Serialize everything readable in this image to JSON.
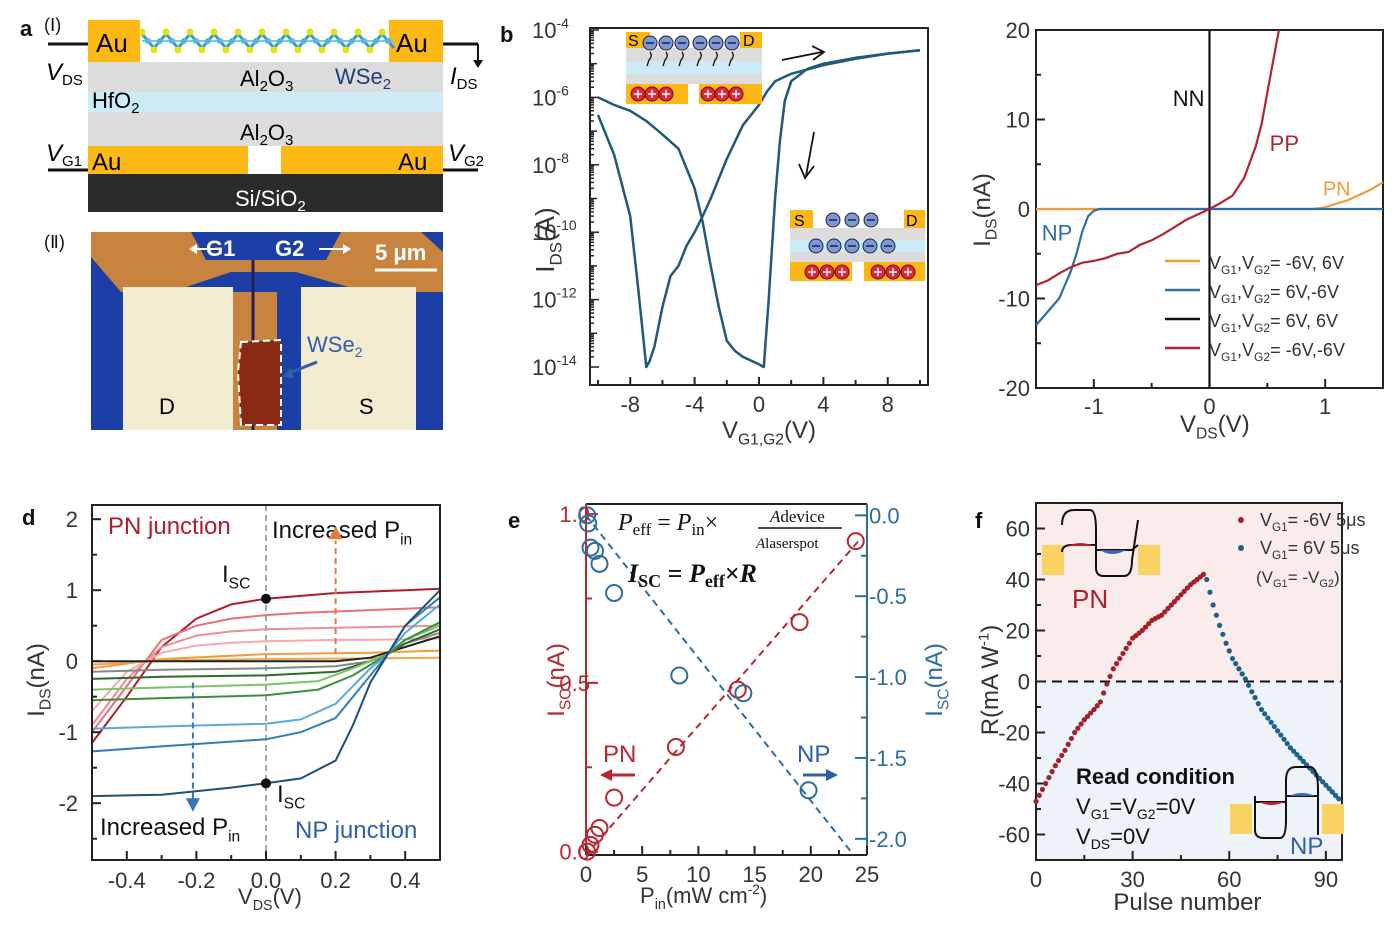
{
  "panels": {
    "a": {
      "label": "a",
      "sub1": "(Ⅰ)",
      "sub2": "(Ⅱ)",
      "layers": {
        "au_tl": "Au",
        "au_tr": "Au",
        "al2o3_top": "Al2O3",
        "wse2": "WSe2",
        "hfo2": "HfO2",
        "al2o3_bottom": "Al2O3",
        "au_bl": "Au",
        "au_br": "Au",
        "substrate": "Si/SiO2"
      },
      "terminals": {
        "vds": "VDS",
        "ids": "IDS",
        "vg1": "VG1",
        "vg2": "VG2"
      },
      "micrograph": {
        "g1": "G1",
        "g2": "G2",
        "scale": "5 μm",
        "wse2": "WSe2",
        "d": "D",
        "s": "S"
      },
      "colors": {
        "gold": "#FDB813",
        "al2o3": "#DCDCDC",
        "hfo2": "#CDEBF7",
        "substrate": "#2B2B2B",
        "wse2_text": "#1F3C78"
      }
    }
  },
  "chart_data": [
    {
      "id": "b",
      "type": "line",
      "panel_label": "b",
      "title": "",
      "xlabel": "VG1,G2(V)",
      "ylabel": "IDS(A)",
      "yscale": "log",
      "xlim": [
        -10.5,
        10.5
      ],
      "ylim": [
        1e-15,
        0.0001
      ],
      "xticks": [
        -8,
        -4,
        0,
        4,
        8
      ],
      "yticks": [
        "10^-4",
        "10^-6",
        "10^-8",
        "10^-10",
        "10^-12",
        "10^-14"
      ],
      "color": "#1F5A7A",
      "series": [
        {
          "name": "forward sweep",
          "x": [
            -10,
            -9,
            -8,
            -7.5,
            -7,
            -6.8,
            -6.5,
            -6,
            -5.5,
            -5,
            -4.5,
            -4,
            -3.5,
            -3,
            -2,
            -1,
            0,
            0.5,
            1,
            2,
            4,
            6,
            8,
            10
          ],
          "y": [
            3e-07,
            2e-08,
            3e-10,
            2e-12,
            1e-14,
            1.5e-14,
            4e-14,
            6e-13,
            5e-12,
            1e-11,
            4e-11,
            1e-10,
            3e-10,
            1e-09,
            1.5e-08,
            1.5e-07,
            6e-07,
            1.5e-06,
            3e-06,
            5e-06,
            9e-06,
            1.4e-05,
            2e-05,
            2.5e-05
          ]
        },
        {
          "name": "backward sweep",
          "x": [
            -10,
            -9,
            -8,
            -7,
            -6,
            -5,
            -4,
            -3.5,
            -3,
            -2.5,
            -2,
            -1.5,
            -1,
            0,
            0.3,
            0.6,
            1,
            1.3,
            1.6,
            2,
            3,
            4,
            6,
            8,
            10
          ],
          "y": [
            1e-06,
            6e-07,
            4e-07,
            2e-07,
            8e-08,
            3e-08,
            2e-09,
            2e-10,
            1e-11,
            6e-13,
            6e-14,
            3e-14,
            2e-14,
            1.2e-14,
            1e-14,
            1e-12,
            1e-09,
            5e-08,
            8e-07,
            3e-06,
            7e-06,
            1e-05,
            1.5e-05,
            2e-05,
            2.5e-05
          ]
        }
      ],
      "insets": {
        "top": {
          "s": "S",
          "d": "D"
        },
        "bottom": {
          "s": "S",
          "d": "D"
        }
      }
    },
    {
      "id": "c",
      "type": "line",
      "panel_label": "",
      "xlabel": "VDS(V)",
      "ylabel": "IDS(nA)",
      "xlim": [
        -1.5,
        1.5
      ],
      "ylim": [
        -20,
        20
      ],
      "xticks": [
        -1,
        0,
        1
      ],
      "yticks": [
        20,
        10,
        0,
        -10,
        -20
      ],
      "annotations": {
        "nn": "NN",
        "pp": "PP",
        "pn": "PN",
        "np": "NP"
      },
      "legend_position": "bottom-right",
      "series": [
        {
          "name": "VG1,VG2= -6V, 6V",
          "label": "PN",
          "color": "#F39A3C",
          "x": [
            -1.5,
            -1,
            0,
            0.5,
            0.9,
            1.0,
            1.2,
            1.4,
            1.5
          ],
          "y": [
            0,
            0,
            0,
            0,
            0,
            0.2,
            1,
            2.2,
            3
          ]
        },
        {
          "name": "VG1,VG2=  6V,-6V",
          "label": "NP",
          "color": "#2F6E9E",
          "x": [
            -1.5,
            -1.4,
            -1.3,
            -1.2,
            -1.15,
            -1.1,
            -1.05,
            -1.0,
            -0.95,
            -0.9,
            0,
            1.5
          ],
          "y": [
            -13,
            -11.5,
            -10,
            -7,
            -5,
            -2.5,
            -0.8,
            -0.2,
            0,
            0,
            0,
            0
          ]
        },
        {
          "name": "VG1,VG2=  6V, 6V",
          "label": "NN",
          "color": "#111111",
          "x": [
            0,
            0,
            0
          ],
          "y": [
            -20,
            0,
            20
          ]
        },
        {
          "name": "VG1,VG2= -6V,-6V",
          "label": "PP",
          "color": "#B22230",
          "x": [
            -1.5,
            -1.4,
            -1.3,
            -1.2,
            -1.1,
            -1.0,
            -0.9,
            -0.8,
            -0.7,
            -0.6,
            -0.5,
            -0.4,
            -0.3,
            -0.2,
            -0.1,
            0,
            0.1,
            0.2,
            0.3,
            0.4,
            0.45,
            0.5,
            0.55,
            0.6
          ],
          "y": [
            -8.5,
            -8,
            -7.2,
            -6.5,
            -6,
            -5.8,
            -5.5,
            -5,
            -4.8,
            -4,
            -3.5,
            -2.8,
            -2,
            -1.2,
            -0.6,
            0,
            0.7,
            1.5,
            3.5,
            7,
            9.5,
            13,
            16.5,
            20
          ]
        }
      ]
    },
    {
      "id": "d",
      "type": "line",
      "panel_label": "d",
      "xlabel": "VDS(V)",
      "ylabel": "IDS(nA)",
      "xlim": [
        -0.5,
        0.5
      ],
      "ylim": [
        -2.8,
        2.2
      ],
      "xticks": [
        -0.4,
        -0.2,
        0.0,
        0.2,
        0.4
      ],
      "yticks": [
        2,
        1,
        0,
        -1,
        -2
      ],
      "annotations": {
        "pn_junction": "PN junction",
        "np_junction": "NP junction",
        "increased_pin_top": "Increased Pin",
        "increased_pin_bottom": "Increased Pin",
        "isc_top": "ISC",
        "isc_bottom": "ISC"
      },
      "isc_points": [
        {
          "x": 0,
          "y": 0.88
        },
        {
          "x": 0,
          "y": -1.72
        }
      ],
      "series": [
        {
          "group": "PN",
          "color": "#B01C2E",
          "isc": 0.88,
          "x": [
            -0.5,
            -0.4,
            -0.3,
            -0.2,
            -0.1,
            0,
            0.1,
            0.2,
            0.3,
            0.4,
            0.5
          ],
          "y": [
            -1.15,
            -0.5,
            0.2,
            0.6,
            0.8,
            0.88,
            0.92,
            0.96,
            0.98,
            1.0,
            1.02
          ]
        },
        {
          "group": "PN",
          "color": "#E8707A",
          "isc": 0.65,
          "x": [
            -0.5,
            -0.4,
            -0.3,
            -0.2,
            -0.1,
            0,
            0.1,
            0.2,
            0.3,
            0.4,
            0.5
          ],
          "y": [
            -1.0,
            -0.35,
            0.3,
            0.5,
            0.6,
            0.65,
            0.68,
            0.7,
            0.72,
            0.74,
            0.76
          ]
        },
        {
          "group": "PN",
          "color": "#F08C95",
          "isc": 0.45,
          "x": [
            -0.5,
            -0.4,
            -0.3,
            -0.2,
            -0.1,
            0,
            0.1,
            0.2,
            0.3,
            0.4,
            0.5
          ],
          "y": [
            -0.9,
            -0.25,
            0.2,
            0.36,
            0.42,
            0.45,
            0.46,
            0.47,
            0.48,
            0.49,
            0.5
          ]
        },
        {
          "group": "PN",
          "color": "#F6A9B0",
          "isc": 0.28,
          "x": [
            -0.5,
            -0.4,
            -0.3,
            -0.2,
            -0.1,
            0,
            0.1,
            0.2,
            0.3,
            0.4,
            0.5
          ],
          "y": [
            -0.7,
            -0.15,
            0.12,
            0.22,
            0.26,
            0.28,
            0.29,
            0.3,
            0.3,
            0.31,
            0.32
          ]
        },
        {
          "group": "zero",
          "color": "#F39A3C",
          "isc": 0.1,
          "x": [
            -0.5,
            -0.3,
            0,
            0.3,
            0.5
          ],
          "y": [
            -0.1,
            0.03,
            0.1,
            0.12,
            0.15
          ]
        },
        {
          "group": "zero",
          "color": "#F5A54A",
          "isc": 0.03,
          "x": [
            -0.5,
            -0.3,
            0,
            0.3,
            0.5
          ],
          "y": [
            -0.05,
            0.01,
            0.03,
            0.04,
            0.05
          ]
        },
        {
          "group": "zero",
          "color": "#222222",
          "isc": 0.0,
          "x": [
            -0.5,
            -0.3,
            0,
            0.2,
            0.3,
            0.4,
            0.5
          ],
          "y": [
            0,
            0,
            0,
            0,
            0.05,
            0.2,
            0.35
          ]
        },
        {
          "group": "zero",
          "color": "#888888",
          "isc": -0.1,
          "x": [
            -0.5,
            -0.3,
            0,
            0.2,
            0.3,
            0.35,
            0.4,
            0.5
          ],
          "y": [
            -0.15,
            -0.12,
            -0.1,
            -0.07,
            0,
            0.1,
            0.25,
            0.4
          ]
        },
        {
          "group": "NP",
          "color": "#2E6B2E",
          "isc": -0.2,
          "x": [
            -0.5,
            -0.3,
            0,
            0.2,
            0.3,
            0.35,
            0.4,
            0.5
          ],
          "y": [
            -0.25,
            -0.22,
            -0.2,
            -0.15,
            0,
            0.1,
            0.25,
            0.45
          ]
        },
        {
          "group": "NP",
          "color": "#7CC36B",
          "isc": -0.33,
          "x": [
            -0.5,
            -0.3,
            0,
            0.15,
            0.25,
            0.35,
            0.4,
            0.5
          ],
          "y": [
            -0.4,
            -0.37,
            -0.33,
            -0.28,
            -0.1,
            0.1,
            0.3,
            0.5
          ]
        },
        {
          "group": "NP",
          "color": "#3E8E3E",
          "isc": -0.48,
          "x": [
            -0.5,
            -0.3,
            0,
            0.15,
            0.25,
            0.35,
            0.4,
            0.5
          ],
          "y": [
            -0.55,
            -0.52,
            -0.48,
            -0.4,
            -0.2,
            0.1,
            0.3,
            0.55
          ]
        },
        {
          "group": "NP",
          "color": "#5AA8DE",
          "isc": -0.88,
          "x": [
            -0.5,
            -0.3,
            0,
            0.1,
            0.2,
            0.3,
            0.35,
            0.4,
            0.5
          ],
          "y": [
            -0.95,
            -0.92,
            -0.88,
            -0.82,
            -0.6,
            -0.1,
            0.1,
            0.4,
            0.8
          ]
        },
        {
          "group": "NP",
          "color": "#2F7FB8",
          "isc": -1.1,
          "x": [
            -0.5,
            -0.3,
            0,
            0.1,
            0.2,
            0.3,
            0.35,
            0.4,
            0.5
          ],
          "y": [
            -1.27,
            -1.2,
            -1.1,
            -1.0,
            -0.8,
            -0.2,
            0.1,
            0.5,
            0.9
          ]
        },
        {
          "group": "NP",
          "color": "#1F4F78",
          "isc": -1.72,
          "x": [
            -0.5,
            -0.3,
            -0.1,
            0,
            0.1,
            0.2,
            0.25,
            0.3,
            0.35,
            0.4,
            0.5
          ],
          "y": [
            -1.9,
            -1.88,
            -1.78,
            -1.72,
            -1.65,
            -1.4,
            -0.9,
            -0.3,
            0.1,
            0.5,
            1.0
          ]
        }
      ]
    },
    {
      "id": "e",
      "type": "scatter",
      "panel_label": "e",
      "xlabel": "Pin(mW cm-2)",
      "ylabel_left": "ISC(nA)",
      "ylabel_right": "ISC(nA)",
      "xlim": [
        0,
        25
      ],
      "ylim_left": [
        -0.01,
        1.03
      ],
      "ylim_right": [
        -2.1,
        0.07
      ],
      "xticks": [
        0,
        5,
        10,
        15,
        20,
        25
      ],
      "yticks_left": [
        0.0,
        0.5,
        1.0
      ],
      "yticks_left_labels": [
        "0.0",
        "0.5",
        "1.0"
      ],
      "yticks_right": [
        0.0,
        -0.5,
        -1.0,
        -1.5,
        -2.0
      ],
      "yticks_right_labels": [
        "0.0",
        "-0.5",
        "-1.0",
        "-1.5",
        "-2.0"
      ],
      "equations": {
        "line1": "Peff = Pin × Adevice / Alaserspot",
        "line2": "ISC = Peff × R"
      },
      "annotations": {
        "pn": "PN",
        "np": "NP"
      },
      "series": [
        {
          "name": "PN",
          "axis": "left",
          "color": "#B8262F",
          "x": [
            0.1,
            0.4,
            0.8,
            1.2,
            2.5,
            8,
            13.5,
            19,
            24
          ],
          "y": [
            0.0,
            0.02,
            0.05,
            0.07,
            0.16,
            0.31,
            0.48,
            0.68,
            0.92
          ],
          "fit": {
            "x": [
              0,
              24.5
            ],
            "y": [
              -0.01,
              0.93
            ]
          }
        },
        {
          "name": "NP",
          "axis": "right",
          "color": "#2C6E9A",
          "x": [
            0.1,
            0.2,
            0.4,
            0.8,
            1.2,
            2.5,
            8.3,
            14,
            19.8
          ],
          "y": [
            0.0,
            -0.05,
            -0.2,
            -0.22,
            -0.3,
            -0.48,
            -0.99,
            -1.1,
            -1.7
          ],
          "fit": {
            "x": [
              0,
              23.8
            ],
            "y": [
              0.0,
              -2.1
            ]
          }
        }
      ]
    },
    {
      "id": "f",
      "type": "scatter",
      "panel_label": "f",
      "xlabel": "Pulse number",
      "ylabel": "R(mA W-1)",
      "xlim": [
        0,
        95
      ],
      "ylim": [
        -70,
        70
      ],
      "xticks": [
        0,
        30,
        60,
        90
      ],
      "yticks": [
        60,
        40,
        20,
        0,
        -20,
        -40,
        -60
      ],
      "legend_position": "top-right",
      "legend": {
        "red": "VG1= -6V 5μs",
        "blue": "VG1=  6V 5μs",
        "note": "(VG1= -VG2)"
      },
      "annotations": {
        "pn": "PN",
        "np": "NP",
        "read_title": "Read condition",
        "read_line1": "VG1=VG2=0V",
        "read_line2": "VDS=0V"
      },
      "background": {
        "upper": "#FBECEC",
        "lower": "#EEF3FA"
      },
      "series": [
        {
          "name": "VG1= -6V 5μs",
          "color": "#A3202A",
          "x_start": 0,
          "x_end": 52,
          "y_start": -47,
          "y_end": 42,
          "x": [
            0,
            3,
            6,
            9,
            12,
            15,
            18,
            20,
            22,
            24,
            27,
            30,
            33,
            36,
            39,
            42,
            45,
            48,
            50,
            52
          ],
          "y": [
            -47,
            -40,
            -33,
            -27,
            -20,
            -15,
            -11,
            -8,
            -1,
            5,
            11,
            17,
            20,
            24,
            26,
            30,
            34,
            38,
            40,
            42
          ]
        },
        {
          "name": "VG1=  6V 5μs",
          "color": "#1F5F8C",
          "x_start": 53,
          "x_end": 94,
          "y_start": 40,
          "y_end": -46,
          "x": [
            53,
            55,
            57,
            59,
            61,
            63,
            65,
            67,
            70,
            73,
            76,
            79,
            82,
            85,
            88,
            91,
            94
          ],
          "y": [
            40,
            30,
            22,
            15,
            9,
            5,
            1,
            -4,
            -11,
            -16,
            -21,
            -26,
            -30,
            -34,
            -38,
            -42,
            -46
          ]
        }
      ]
    }
  ]
}
